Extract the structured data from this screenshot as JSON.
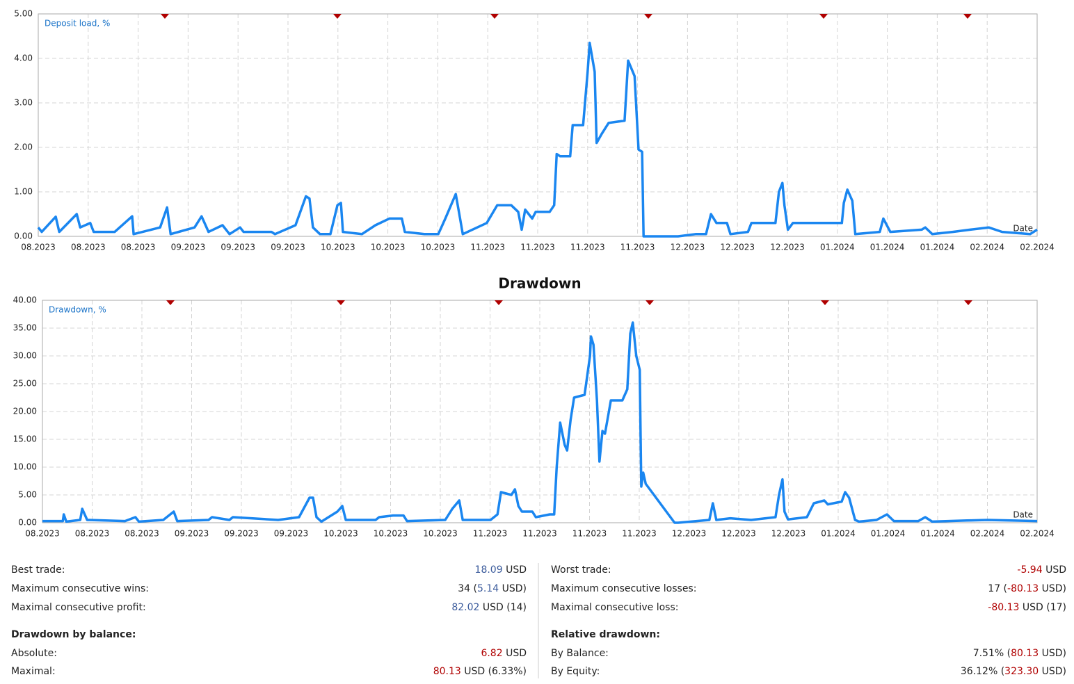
{
  "chart_data": [
    {
      "type": "line",
      "y_axis_label": "Deposit load, %",
      "x_axis_label": "Date",
      "xlim": [
        0,
        20
      ],
      "xticks": [
        {
          "value": 0,
          "label": "08.2023"
        },
        {
          "value": 1,
          "label": "08.2023"
        },
        {
          "value": 2,
          "label": "08.2023"
        },
        {
          "value": 3,
          "label": "09.2023"
        },
        {
          "value": 4,
          "label": "09.2023"
        },
        {
          "value": 5,
          "label": "09.2023"
        },
        {
          "value": 6,
          "label": "10.2023"
        },
        {
          "value": 7,
          "label": "10.2023"
        },
        {
          "value": 8,
          "label": "10.2023"
        },
        {
          "value": 9,
          "label": "11.2023"
        },
        {
          "value": 10,
          "label": "11.2023"
        },
        {
          "value": 11,
          "label": "11.2023"
        },
        {
          "value": 12,
          "label": "11.2023"
        },
        {
          "value": 13,
          "label": "12.2023"
        },
        {
          "value": 14,
          "label": "12.2023"
        },
        {
          "value": 15,
          "label": "12.2023"
        },
        {
          "value": 16,
          "label": "01.2024"
        },
        {
          "value": 17,
          "label": "01.2024"
        },
        {
          "value": 18,
          "label": "01.2024"
        },
        {
          "value": 19,
          "label": "02.2024"
        },
        {
          "value": 20,
          "label": "02.2024"
        }
      ],
      "ylim": [
        0,
        5
      ],
      "yticks": [
        {
          "value": 0,
          "label": "0.00"
        },
        {
          "value": 1,
          "label": "1.00"
        },
        {
          "value": 2,
          "label": "2.00"
        },
        {
          "value": 3,
          "label": "3.00"
        },
        {
          "value": 4,
          "label": "4.00"
        },
        {
          "value": 5,
          "label": "5.00"
        }
      ],
      "grid": true,
      "series": [
        {
          "name": "Deposit load, %",
          "color": "#1a86f0",
          "x": [
            0,
            0.07,
            0.35,
            0.42,
            0.77,
            0.84,
            1.04,
            1.11,
            1.53,
            1.88,
            1.91,
            2.44,
            2.58,
            2.65,
            3.13,
            3.27,
            3.41,
            3.69,
            3.83,
            4.04,
            4.11,
            4.67,
            4.74,
            5.15,
            5.36,
            5.43,
            5.5,
            5.64,
            5.85,
            5.99,
            6.06,
            6.1,
            6.48,
            6.75,
            7.03,
            7.28,
            7.34,
            7.73,
            8.01,
            8.15,
            8.36,
            8.43,
            8.5,
            8.98,
            9.19,
            9.47,
            9.61,
            9.68,
            9.75,
            9.89,
            9.96,
            10.24,
            10.33,
            10.38,
            10.45,
            10.65,
            10.7,
            10.91,
            11.0,
            11.04,
            11.14,
            11.18,
            11.28,
            11.42,
            11.74,
            11.81,
            11.94,
            12.02,
            12.09,
            12.12,
            12.81,
            13.16,
            13.37,
            13.47,
            13.58,
            13.79,
            13.86,
            14.21,
            14.28,
            14.76,
            14.83,
            14.9,
            14.94,
            15.01,
            15.11,
            16.09,
            16.13,
            16.2,
            16.3,
            16.36,
            16.85,
            16.92,
            17.06,
            17.69,
            17.76,
            17.9,
            18.31,
            18.66,
            19.03,
            19.3,
            19.86,
            20
          ],
          "values": [
            0.2,
            0.1,
            0.44,
            0.1,
            0.5,
            0.2,
            0.3,
            0.1,
            0.1,
            0.45,
            0.05,
            0.2,
            0.65,
            0.05,
            0.2,
            0.45,
            0.1,
            0.25,
            0.05,
            0.2,
            0.1,
            0.1,
            0.05,
            0.25,
            0.9,
            0.85,
            0.2,
            0.05,
            0.05,
            0.7,
            0.75,
            0.1,
            0.05,
            0.25,
            0.4,
            0.4,
            0.1,
            0.05,
            0.05,
            0.4,
            0.95,
            0.5,
            0.05,
            0.3,
            0.7,
            0.7,
            0.55,
            0.15,
            0.6,
            0.4,
            0.55,
            0.55,
            0.7,
            1.85,
            1.8,
            1.8,
            2.5,
            2.5,
            3.7,
            4.35,
            3.7,
            2.1,
            2.3,
            2.55,
            2.6,
            3.95,
            3.6,
            1.95,
            1.9,
            0,
            0,
            0.05,
            0.05,
            0.5,
            0.3,
            0.3,
            0.05,
            0.1,
            0.3,
            0.3,
            1.0,
            1.2,
            0.7,
            0.15,
            0.3,
            0.3,
            0.75,
            1.05,
            0.8,
            0.05,
            0.1,
            0.4,
            0.1,
            0.15,
            0.2,
            0.05,
            0.1,
            0.15,
            0.2,
            0.1,
            0.05,
            0.15
          ]
        }
      ]
    },
    {
      "type": "line",
      "title": "Drawdown",
      "y_axis_label": "Drawdown, %",
      "x_axis_label": "Date",
      "xlim": [
        0,
        20
      ],
      "xticks": [
        {
          "value": 0,
          "label": "08.2023"
        },
        {
          "value": 1,
          "label": "08.2023"
        },
        {
          "value": 2,
          "label": "08.2023"
        },
        {
          "value": 3,
          "label": "09.2023"
        },
        {
          "value": 4,
          "label": "09.2023"
        },
        {
          "value": 5,
          "label": "09.2023"
        },
        {
          "value": 6,
          "label": "10.2023"
        },
        {
          "value": 7,
          "label": "10.2023"
        },
        {
          "value": 8,
          "label": "10.2023"
        },
        {
          "value": 9,
          "label": "11.2023"
        },
        {
          "value": 10,
          "label": "11.2023"
        },
        {
          "value": 11,
          "label": "11.2023"
        },
        {
          "value": 12,
          "label": "11.2023"
        },
        {
          "value": 13,
          "label": "12.2023"
        },
        {
          "value": 14,
          "label": "12.2023"
        },
        {
          "value": 15,
          "label": "12.2023"
        },
        {
          "value": 16,
          "label": "01.2024"
        },
        {
          "value": 17,
          "label": "01.2024"
        },
        {
          "value": 18,
          "label": "01.2024"
        },
        {
          "value": 19,
          "label": "02.2024"
        },
        {
          "value": 20,
          "label": "02.2024"
        }
      ],
      "ylim": [
        0,
        40
      ],
      "yticks": [
        {
          "value": 0,
          "label": "0.00"
        },
        {
          "value": 5,
          "label": "5.00"
        },
        {
          "value": 10,
          "label": "10.00"
        },
        {
          "value": 15,
          "label": "15.00"
        },
        {
          "value": 20,
          "label": "20.00"
        },
        {
          "value": 25,
          "label": "25.00"
        },
        {
          "value": 30,
          "label": "30.00"
        },
        {
          "value": 35,
          "label": "35.00"
        },
        {
          "value": 40,
          "label": "40.00"
        }
      ],
      "grid": true,
      "series": [
        {
          "name": "Drawdown, %",
          "color": "#1a86f0",
          "x": [
            0,
            0.41,
            0.43,
            0.48,
            0.76,
            0.8,
            0.9,
            1.66,
            1.87,
            1.94,
            2.43,
            2.64,
            2.71,
            3.34,
            3.41,
            3.76,
            3.83,
            4.74,
            5.16,
            5.37,
            5.44,
            5.51,
            5.61,
            5.93,
            6.03,
            6.1,
            6.7,
            6.77,
            7.05,
            7.26,
            7.33,
            8.1,
            8.24,
            8.38,
            8.45,
            9.01,
            9.15,
            9.22,
            9.43,
            9.5,
            9.57,
            9.64,
            9.85,
            9.92,
            10.2,
            10.29,
            10.34,
            10.41,
            10.5,
            10.55,
            10.62,
            10.69,
            10.9,
            11.01,
            11.03,
            11.08,
            11.15,
            11.2,
            11.26,
            11.31,
            11.43,
            11.66,
            11.76,
            11.82,
            11.87,
            11.94,
            12.01,
            12.04,
            12.08,
            12.13,
            12.71,
            12.78,
            13.41,
            13.48,
            13.55,
            13.83,
            14.25,
            14.74,
            14.81,
            14.88,
            14.92,
            14.99,
            15.37,
            15.51,
            15.72,
            15.79,
            16.07,
            16.14,
            16.22,
            16.34,
            16.42,
            16.77,
            16.98,
            17.12,
            17.61,
            17.75,
            17.89,
            18.59,
            19.01,
            20
          ],
          "values": [
            0.3,
            0.3,
            1.5,
            0.2,
            0.5,
            2.5,
            0.5,
            0.3,
            1.0,
            0.2,
            0.5,
            2.0,
            0.3,
            0.5,
            1.0,
            0.5,
            1.0,
            0.5,
            1.0,
            4.5,
            4.5,
            1.0,
            0.2,
            2.0,
            3.0,
            0.5,
            0.5,
            1.0,
            1.3,
            1.3,
            0.3,
            0.5,
            2.5,
            4.0,
            0.5,
            0.5,
            1.5,
            5.5,
            5.0,
            6.0,
            3.0,
            2.0,
            2.0,
            1.0,
            1.5,
            1.5,
            10.0,
            18.0,
            14.0,
            13.0,
            18.5,
            22.5,
            23,
            30,
            33.5,
            32,
            22,
            11,
            16.5,
            16,
            22,
            22,
            24,
            34,
            36,
            30,
            27.5,
            6.5,
            9,
            7,
            0,
            0,
            0.5,
            3.5,
            0.5,
            0.8,
            0.5,
            1.0,
            5.0,
            7.8,
            2.0,
            0.6,
            1.0,
            3.5,
            4.0,
            3.3,
            3.8,
            5.5,
            4.5,
            0.5,
            0.2,
            0.5,
            1.5,
            0.3,
            0.3,
            1.0,
            0.2,
            0.4,
            0.5,
            0.3
          ]
        }
      ]
    }
  ],
  "stats": [
    {
      "rows": [
        {
          "label": "Best trade:",
          "parts": [
            {
              "text": "18.09",
              "color": "#3a5a9b"
            },
            {
              "text": " USD"
            }
          ]
        },
        {
          "label": "Maximum consecutive wins:",
          "parts": [
            {
              "text": "34 ("
            },
            {
              "text": "5.14",
              "color": "#3a5a9b"
            },
            {
              "text": " USD)"
            }
          ]
        },
        {
          "label": "Maximal consecutive profit:",
          "parts": [
            {
              "text": "82.02",
              "color": "#3a5a9b"
            },
            {
              "text": " USD (14)"
            }
          ]
        }
      ],
      "section_title": "Drawdown by balance:",
      "section_rows": [
        {
          "label": "Absolute:",
          "parts": [
            {
              "text": "6.82",
              "color": "#b00000"
            },
            {
              "text": " USD"
            }
          ]
        },
        {
          "label": "Maximal:",
          "parts": [
            {
              "text": "80.13",
              "color": "#b00000"
            },
            {
              "text": " USD (6.33%)"
            }
          ]
        }
      ]
    },
    {
      "rows": [
        {
          "label": "Worst trade:",
          "parts": [
            {
              "text": "-5.94",
              "color": "#b00000"
            },
            {
              "text": " USD"
            }
          ]
        },
        {
          "label": "Maximum consecutive losses:",
          "parts": [
            {
              "text": "17 ("
            },
            {
              "text": "-80.13",
              "color": "#b00000"
            },
            {
              "text": " USD)"
            }
          ]
        },
        {
          "label": "Maximal consecutive loss:",
          "parts": [
            {
              "text": "-80.13",
              "color": "#b00000"
            },
            {
              "text": " USD (17)"
            }
          ]
        }
      ],
      "section_title": "Relative drawdown:",
      "section_rows": [
        {
          "label": "By Balance:",
          "parts": [
            {
              "text": "7.51% ("
            },
            {
              "text": "80.13",
              "color": "#b00000"
            },
            {
              "text": " USD)"
            }
          ]
        },
        {
          "label": "By Equity:",
          "parts": [
            {
              "text": "36.12% ("
            },
            {
              "text": "323.30",
              "color": "#b00000"
            },
            {
              "text": " USD)"
            }
          ]
        }
      ]
    }
  ]
}
